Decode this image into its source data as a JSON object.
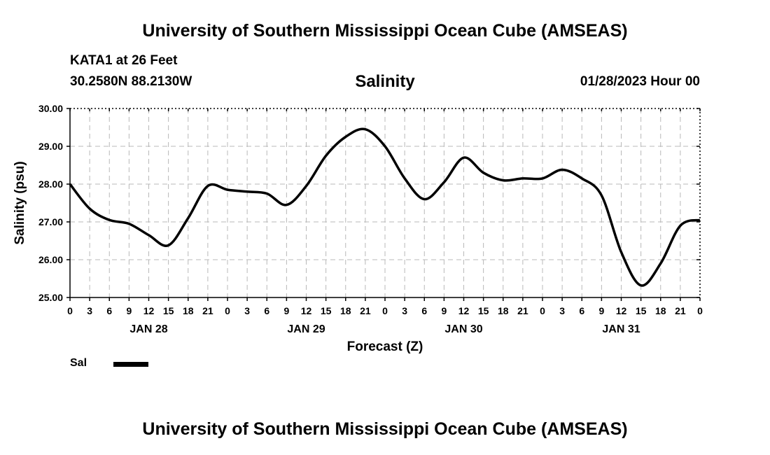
{
  "header": {
    "title": "University of Southern Mississippi Ocean Cube (AMSEAS)",
    "station": "KATA1 at 26 Feet",
    "coords": "30.2580N  88.2130W",
    "timestamp": "01/28/2023 Hour 00"
  },
  "footer": {
    "title": "University of Southern Mississippi Ocean Cube (AMSEAS)"
  },
  "chart_data": {
    "type": "line",
    "title": "Salinity",
    "xlabel": "Forecast (Z)",
    "ylabel": "Salinity (psu)",
    "ylim": [
      25.0,
      30.0
    ],
    "xlim": [
      0,
      96
    ],
    "grid": true,
    "y_ticks": [
      "25.00",
      "26.00",
      "27.00",
      "28.00",
      "29.00",
      "30.00"
    ],
    "x_tick_labels": [
      "0",
      "3",
      "6",
      "9",
      "12",
      "15",
      "18",
      "21",
      "0",
      "3",
      "6",
      "9",
      "12",
      "15",
      "18",
      "21",
      "0",
      "3",
      "6",
      "9",
      "12",
      "15",
      "18",
      "21",
      "0",
      "3",
      "6",
      "9",
      "12",
      "15",
      "18",
      "21",
      "0"
    ],
    "day_labels": [
      {
        "label": "JAN 28",
        "hour": 12
      },
      {
        "label": "JAN 29",
        "hour": 36
      },
      {
        "label": "JAN 30",
        "hour": 60
      },
      {
        "label": "JAN 31",
        "hour": 84
      }
    ],
    "series": [
      {
        "name": "Sal",
        "color": "#000000",
        "x": [
          0,
          3,
          6,
          9,
          12,
          15,
          18,
          21,
          24,
          27,
          30,
          33,
          36,
          39,
          42,
          45,
          48,
          51,
          54,
          57,
          60,
          63,
          66,
          69,
          72,
          75,
          78,
          81,
          84,
          87,
          90,
          93,
          96
        ],
        "values": [
          28.0,
          27.35,
          27.05,
          26.95,
          26.65,
          26.38,
          27.1,
          27.95,
          27.85,
          27.8,
          27.75,
          27.45,
          27.95,
          28.75,
          29.25,
          29.45,
          29.0,
          28.15,
          27.6,
          28.05,
          28.7,
          28.3,
          28.1,
          28.15,
          28.15,
          28.38,
          28.15,
          27.7,
          26.2,
          25.32,
          25.9,
          26.9,
          27.05
        ]
      }
    ],
    "legend": {
      "position": "bottom-left"
    }
  }
}
